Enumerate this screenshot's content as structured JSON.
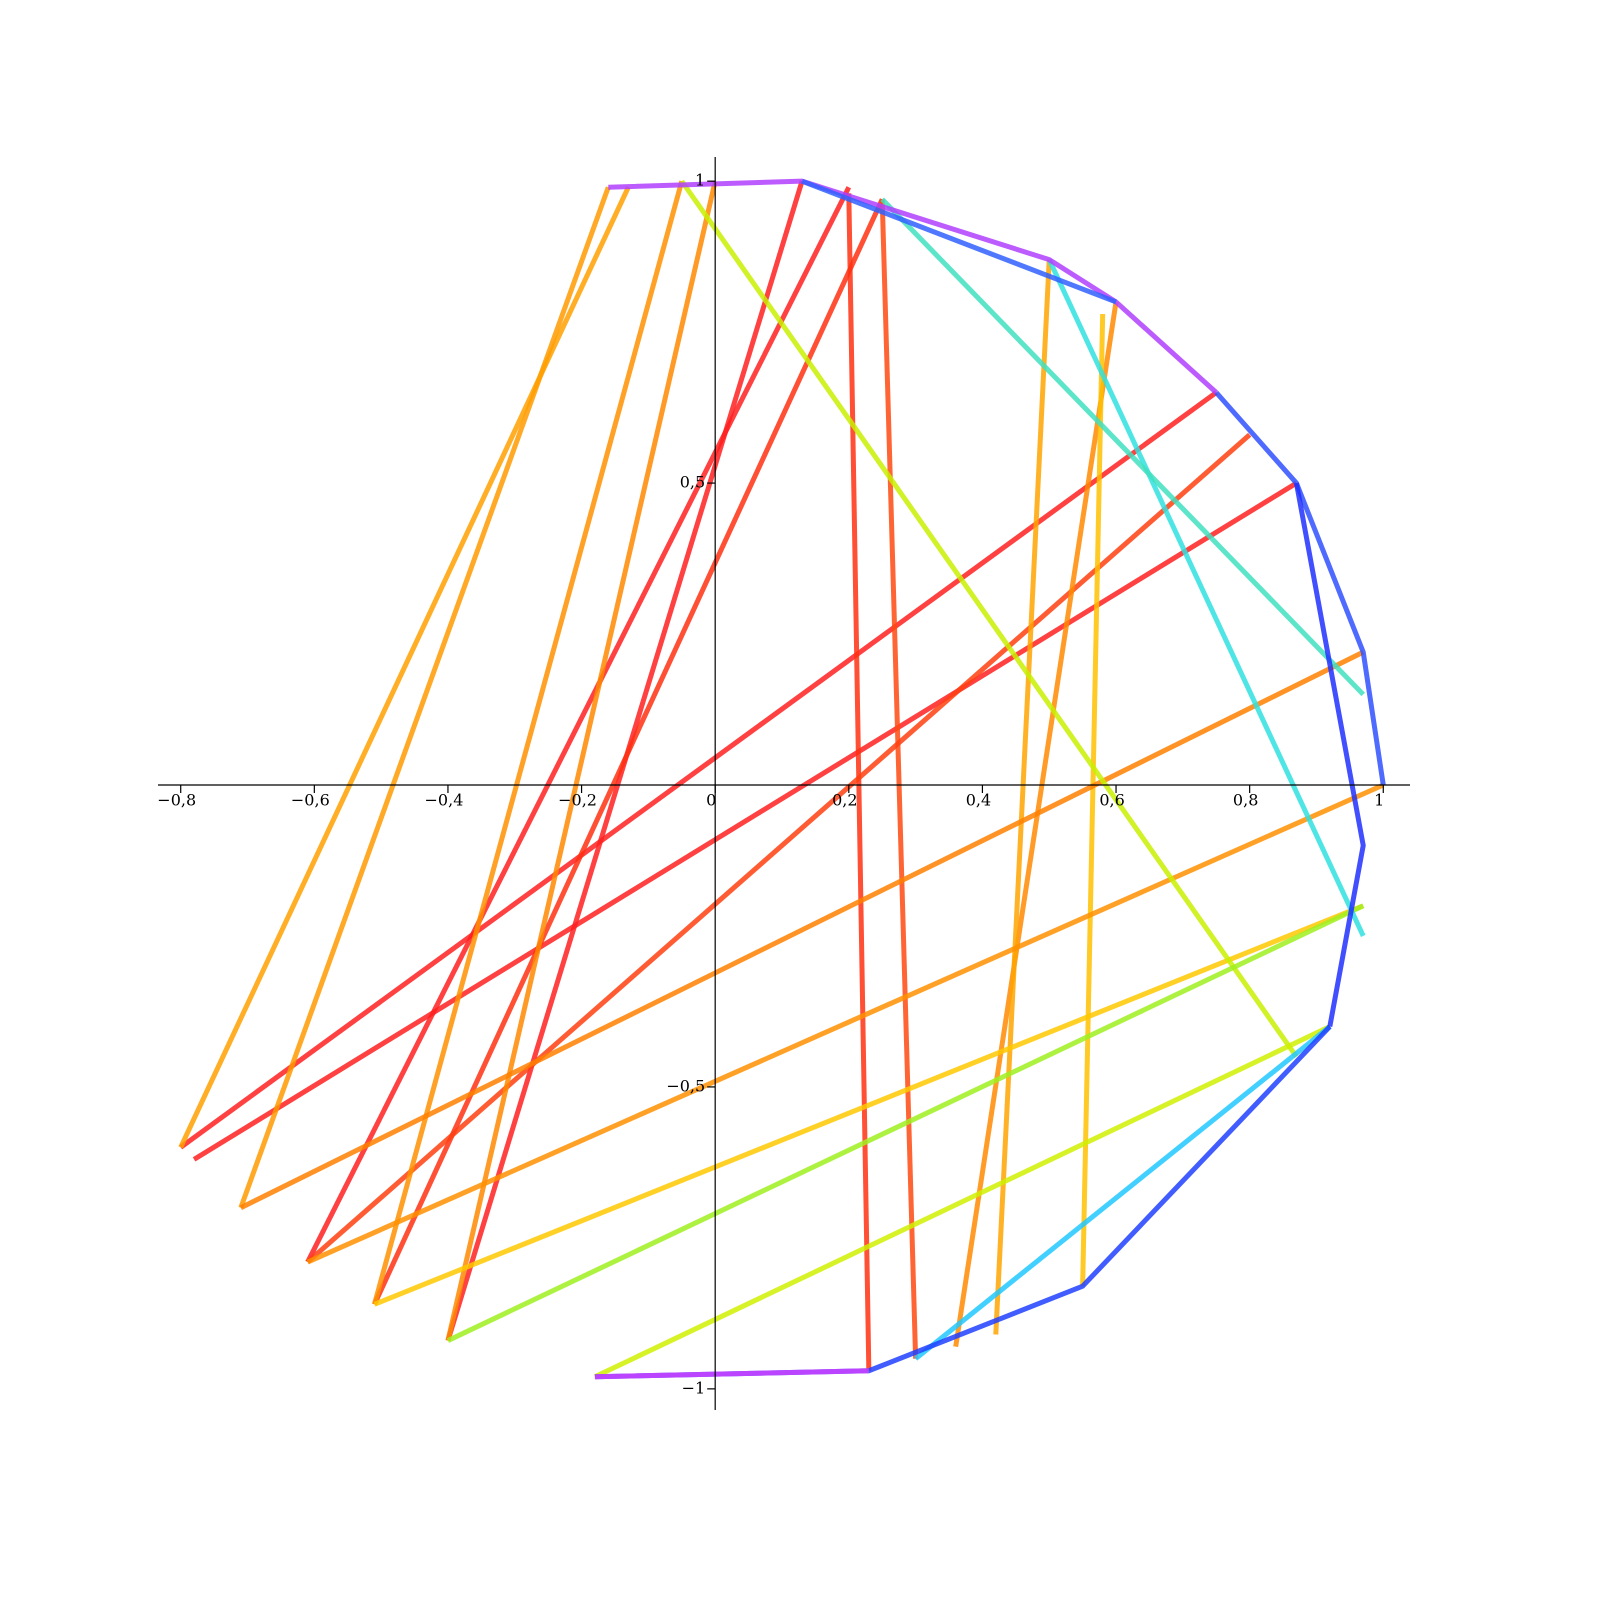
{
  "chart_data": {
    "type": "line",
    "xlim": [
      -0.834,
      1.04
    ],
    "ylim": [
      -1.035,
      1.04
    ],
    "xticks": [
      {
        "value": -0.8,
        "label": "−0,8"
      },
      {
        "value": -0.6,
        "label": "−0,6"
      },
      {
        "value": -0.4,
        "label": "−0,4"
      },
      {
        "value": -0.2,
        "label": "−0,2"
      },
      0,
      {
        "value": 0.2,
        "label": "0,2"
      },
      {
        "value": 0.4,
        "label": "0,4"
      },
      {
        "value": 0.6,
        "label": "0,6"
      },
      {
        "value": 0.8,
        "label": "0,8"
      },
      1
    ],
    "yticks": [
      {
        "value": -1,
        "label": "−1"
      },
      {
        "value": -0.5,
        "label": "−0,5"
      },
      {
        "value": 0.5,
        "label": "0,5"
      },
      1
    ],
    "series": [
      {
        "color": "#ff2020",
        "x": [
          -0.8,
          0.75
        ],
        "y": [
          -0.6,
          0.65
        ]
      },
      {
        "color": "#ff2020",
        "x": [
          -0.78,
          0.87
        ],
        "y": [
          -0.62,
          0.5
        ]
      },
      {
        "color": "#ff2020",
        "x": [
          -0.4,
          0.13
        ],
        "y": [
          -0.92,
          1.0
        ]
      },
      {
        "color": "#ff2020",
        "x": [
          -0.61,
          0.2
        ],
        "y": [
          -0.79,
          0.99
        ]
      },
      {
        "color": "#ff3010",
        "x": [
          -0.51,
          0.25
        ],
        "y": [
          -0.86,
          0.97
        ]
      },
      {
        "color": "#ff3010",
        "x": [
          0.23,
          0.2
        ],
        "y": [
          -0.97,
          0.98
        ]
      },
      {
        "color": "#ff4a10",
        "x": [
          0.3,
          0.25
        ],
        "y": [
          -0.95,
          0.97
        ]
      },
      {
        "color": "#ff4010",
        "x": [
          -0.61,
          0.8
        ],
        "y": [
          -0.79,
          0.58
        ]
      },
      {
        "color": "#ff9a00",
        "x": [
          -0.71,
          -0.16
        ],
        "y": [
          -0.7,
          0.99
        ]
      },
      {
        "color": "#ffa000",
        "x": [
          -0.8,
          -0.13
        ],
        "y": [
          -0.6,
          0.99
        ]
      },
      {
        "color": "#ff9000",
        "x": [
          -0.51,
          -0.05
        ],
        "y": [
          -0.86,
          1.0
        ]
      },
      {
        "color": "#ff8800",
        "x": [
          -0.4,
          0.0
        ],
        "y": [
          -0.92,
          1.0
        ]
      },
      {
        "color": "#ff8a00",
        "x": [
          0.36,
          0.6
        ],
        "y": [
          -0.93,
          0.8
        ]
      },
      {
        "color": "#ffa500",
        "x": [
          0.42,
          0.5
        ],
        "y": [
          -0.91,
          0.87
        ]
      },
      {
        "color": "#ffc000",
        "x": [
          0.55,
          0.58
        ],
        "y": [
          -0.83,
          0.78
        ]
      },
      {
        "color": "#ff8000",
        "x": [
          -0.71,
          0.97
        ],
        "y": [
          -0.7,
          0.22
        ]
      },
      {
        "color": "#ff9000",
        "x": [
          -0.61,
          1.0
        ],
        "y": [
          -0.79,
          0.0
        ]
      },
      {
        "color": "#ffc800",
        "x": [
          -0.51,
          0.97
        ],
        "y": [
          -0.86,
          -0.2
        ]
      },
      {
        "color": "#c8f000",
        "x": [
          -0.05,
          0.87
        ],
        "y": [
          1.0,
          -0.45
        ]
      },
      {
        "color": "#a0f020",
        "x": [
          -0.4,
          0.97
        ],
        "y": [
          -0.92,
          -0.2
        ]
      },
      {
        "color": "#d0f000",
        "x": [
          -0.18,
          0.92
        ],
        "y": [
          -0.98,
          -0.4
        ]
      },
      {
        "color": "#30e0e0",
        "x": [
          0.5,
          0.97
        ],
        "y": [
          0.87,
          -0.25
        ]
      },
      {
        "color": "#20c8ff",
        "x": [
          0.3,
          0.92
        ],
        "y": [
          -0.95,
          -0.4
        ]
      },
      {
        "color": "#40e0c0",
        "x": [
          0.25,
          0.97
        ],
        "y": [
          0.97,
          0.15
        ]
      },
      {
        "color": "#2040ff",
        "x": [
          -0.18,
          0.23,
          0.55,
          0.92
        ],
        "y": [
          -0.98,
          -0.97,
          -0.83,
          -0.4
        ]
      },
      {
        "color": "#3050ff",
        "x": [
          0.75,
          0.87,
          0.97,
          1.0
        ],
        "y": [
          0.65,
          0.5,
          0.22,
          0.0
        ]
      },
      {
        "color": "#2030ff",
        "x": [
          0.87,
          0.97,
          0.92
        ],
        "y": [
          0.5,
          -0.1,
          -0.4
        ]
      },
      {
        "color": "#b040ff",
        "x": [
          -0.16,
          0.13,
          0.5,
          0.6,
          0.75
        ],
        "y": [
          0.99,
          1.0,
          0.87,
          0.8,
          0.65
        ]
      },
      {
        "color": "#d040ff",
        "x": [
          -0.18,
          0.23
        ],
        "y": [
          -0.98,
          -0.97
        ]
      },
      {
        "color": "#3060ff",
        "x": [
          0.13,
          0.6
        ],
        "y": [
          1.0,
          0.8
        ]
      }
    ]
  }
}
